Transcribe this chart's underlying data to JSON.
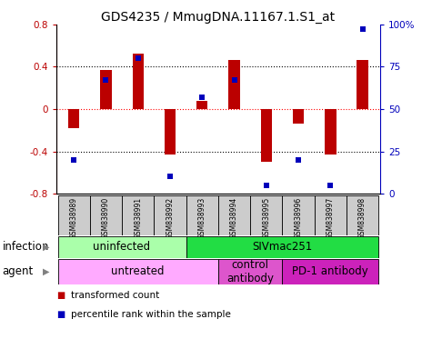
{
  "title": "GDS4235 / MmugDNA.11167.1.S1_at",
  "samples": [
    "GSM838989",
    "GSM838990",
    "GSM838991",
    "GSM838992",
    "GSM838993",
    "GSM838994",
    "GSM838995",
    "GSM838996",
    "GSM838997",
    "GSM838998"
  ],
  "transformed_count": [
    -0.18,
    0.37,
    0.52,
    -0.43,
    0.08,
    0.46,
    -0.5,
    -0.14,
    -0.43,
    0.46
  ],
  "percentile_rank": [
    20,
    67,
    80,
    10,
    57,
    67,
    5,
    20,
    5,
    97
  ],
  "ylim": [
    -0.8,
    0.8
  ],
  "y2lim": [
    0,
    100
  ],
  "yticks": [
    -0.8,
    -0.4,
    0.0,
    0.4,
    0.8
  ],
  "y2ticks": [
    0,
    25,
    50,
    75,
    100
  ],
  "y2ticklabels": [
    "0",
    "25",
    "50",
    "75",
    "100%"
  ],
  "hlines_dotted": [
    -0.4,
    0.4
  ],
  "hline_red_dashed": 0.0,
  "bar_color": "#bb0000",
  "dot_color": "#0000bb",
  "infection_groups": [
    {
      "label": "uninfected",
      "start": 0,
      "end": 4,
      "color": "#aaffaa"
    },
    {
      "label": "SIVmac251",
      "start": 4,
      "end": 10,
      "color": "#22dd44"
    }
  ],
  "agent_groups": [
    {
      "label": "untreated",
      "start": 0,
      "end": 5,
      "color": "#ffaaff"
    },
    {
      "label": "control\nantibody",
      "start": 5,
      "end": 7,
      "color": "#dd55cc"
    },
    {
      "label": "PD-1 antibody",
      "start": 7,
      "end": 10,
      "color": "#cc22bb"
    }
  ],
  "legend_items": [
    {
      "label": "transformed count",
      "color": "#bb0000"
    },
    {
      "label": "percentile rank within the sample",
      "color": "#0000bb"
    }
  ],
  "sample_box_color": "#cccccc",
  "title_fontsize": 10,
  "tick_fontsize": 7.5,
  "label_fontsize": 8.5,
  "legend_fontsize": 7.5
}
